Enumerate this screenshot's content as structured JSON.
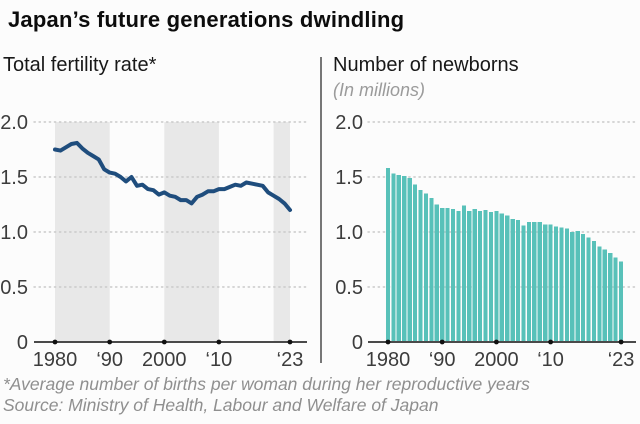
{
  "header": {
    "title": "Japan’s future generations dwindling"
  },
  "panels": {
    "left": {
      "subtitle": "Total fertility rate*"
    },
    "right": {
      "subtitle": "Number of newborns",
      "unit_note": "(In millions)"
    }
  },
  "footer": {
    "footnote": "*Average number of births per woman during her reproductive years",
    "source": "Source: Ministry of Health, Labour and Welfare of Japan"
  },
  "colors": {
    "line": "#1f4d7d",
    "bar": "#58c1b9",
    "band": "#e8e8e8",
    "grid": "#c9c9c9",
    "axis": "#4a4a4a",
    "tick_dot": "#111111",
    "tick_text": "#3c3c3c"
  },
  "chart_data": [
    {
      "type": "line",
      "title": "Total fertility rate*",
      "x": [
        1980,
        1981,
        1982,
        1983,
        1984,
        1985,
        1986,
        1987,
        1988,
        1989,
        1990,
        1991,
        1992,
        1993,
        1994,
        1995,
        1996,
        1997,
        1998,
        1999,
        2000,
        2001,
        2002,
        2003,
        2004,
        2005,
        2006,
        2007,
        2008,
        2009,
        2010,
        2011,
        2012,
        2013,
        2014,
        2015,
        2016,
        2017,
        2018,
        2019,
        2020,
        2021,
        2022,
        2023
      ],
      "values": [
        1.75,
        1.74,
        1.77,
        1.8,
        1.81,
        1.76,
        1.72,
        1.69,
        1.66,
        1.57,
        1.54,
        1.53,
        1.5,
        1.46,
        1.5,
        1.42,
        1.43,
        1.39,
        1.38,
        1.34,
        1.36,
        1.33,
        1.32,
        1.29,
        1.29,
        1.26,
        1.32,
        1.34,
        1.37,
        1.37,
        1.39,
        1.39,
        1.41,
        1.43,
        1.42,
        1.45,
        1.44,
        1.43,
        1.42,
        1.36,
        1.33,
        1.3,
        1.26,
        1.2
      ],
      "ylim": [
        0,
        2.0
      ],
      "yticks": [
        0,
        0.5,
        1.0,
        1.5,
        2.0
      ],
      "ytick_labels": [
        "0",
        "0.5",
        "1.0",
        "1.5",
        "2.0"
      ],
      "xtick_years": [
        1980,
        1990,
        2000,
        2010,
        2023
      ],
      "xtick_labels": [
        "1980",
        "‘90",
        "2000",
        "‘10",
        "‘23"
      ],
      "shaded_bands": [
        [
          1980,
          1990
        ],
        [
          2000,
          2010
        ],
        [
          2020,
          2023
        ]
      ],
      "grid": "dotted",
      "legend": "none"
    },
    {
      "type": "bar",
      "title": "Number of newborns",
      "subtitle": "(In millions)",
      "x": [
        1980,
        1981,
        1982,
        1983,
        1984,
        1985,
        1986,
        1987,
        1988,
        1989,
        1990,
        1991,
        1992,
        1993,
        1994,
        1995,
        1996,
        1997,
        1998,
        1999,
        2000,
        2001,
        2002,
        2003,
        2004,
        2005,
        2006,
        2007,
        2008,
        2009,
        2010,
        2011,
        2012,
        2013,
        2014,
        2015,
        2016,
        2017,
        2018,
        2019,
        2020,
        2021,
        2022,
        2023
      ],
      "values": [
        1.58,
        1.53,
        1.52,
        1.51,
        1.49,
        1.43,
        1.38,
        1.35,
        1.31,
        1.25,
        1.22,
        1.22,
        1.21,
        1.19,
        1.24,
        1.19,
        1.21,
        1.19,
        1.2,
        1.18,
        1.19,
        1.17,
        1.15,
        1.12,
        1.11,
        1.06,
        1.09,
        1.09,
        1.09,
        1.07,
        1.07,
        1.05,
        1.04,
        1.03,
        1.0,
        1.01,
        0.98,
        0.95,
        0.92,
        0.87,
        0.84,
        0.81,
        0.77,
        0.73
      ],
      "ylim": [
        0,
        2.0
      ],
      "yticks": [
        0,
        0.5,
        1.0,
        1.5,
        2.0
      ],
      "ytick_labels": [
        "0",
        "0.5",
        "1.0",
        "1.5",
        "2.0"
      ],
      "xtick_years": [
        1980,
        1990,
        2000,
        2010,
        2023
      ],
      "xtick_labels": [
        "1980",
        "‘90",
        "2000",
        "‘10",
        "‘23"
      ],
      "shaded_bands": [],
      "grid": "dotted",
      "legend": "none"
    }
  ]
}
